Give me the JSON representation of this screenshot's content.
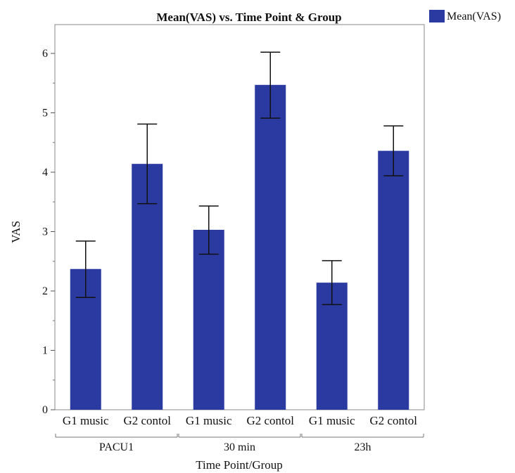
{
  "chart_data": {
    "type": "bar",
    "title": "Mean(VAS) vs. Time Point & Group",
    "xlabel": "Time Point/Group",
    "ylabel": "VAS",
    "ylim": [
      0,
      6.5
    ],
    "yticks": [
      0,
      1,
      2,
      3,
      4,
      5,
      6
    ],
    "grid": false,
    "legend": {
      "position": "top-right",
      "entries": [
        "Mean(VAS)"
      ]
    },
    "groups": [
      {
        "label": "PACU1",
        "categories": [
          "G1 music",
          "G2 contol"
        ]
      },
      {
        "label": "30 min",
        "categories": [
          "G1 music",
          "G2 contol"
        ]
      },
      {
        "label": "23h",
        "categories": [
          "G1 music",
          "G2 contol"
        ]
      }
    ],
    "categories": [
      "G1 music",
      "G2 contol",
      "G1 music",
      "G2 contol",
      "G1 music",
      "G2 contol"
    ],
    "series": [
      {
        "name": "Mean(VAS)",
        "color": "#2b3aa0",
        "values": [
          2.37,
          4.14,
          3.03,
          5.47,
          2.14,
          4.36
        ],
        "error_low": [
          1.89,
          3.47,
          2.62,
          4.91,
          1.77,
          3.94
        ],
        "error_high": [
          2.84,
          4.81,
          3.43,
          6.02,
          2.51,
          4.78
        ]
      }
    ]
  }
}
